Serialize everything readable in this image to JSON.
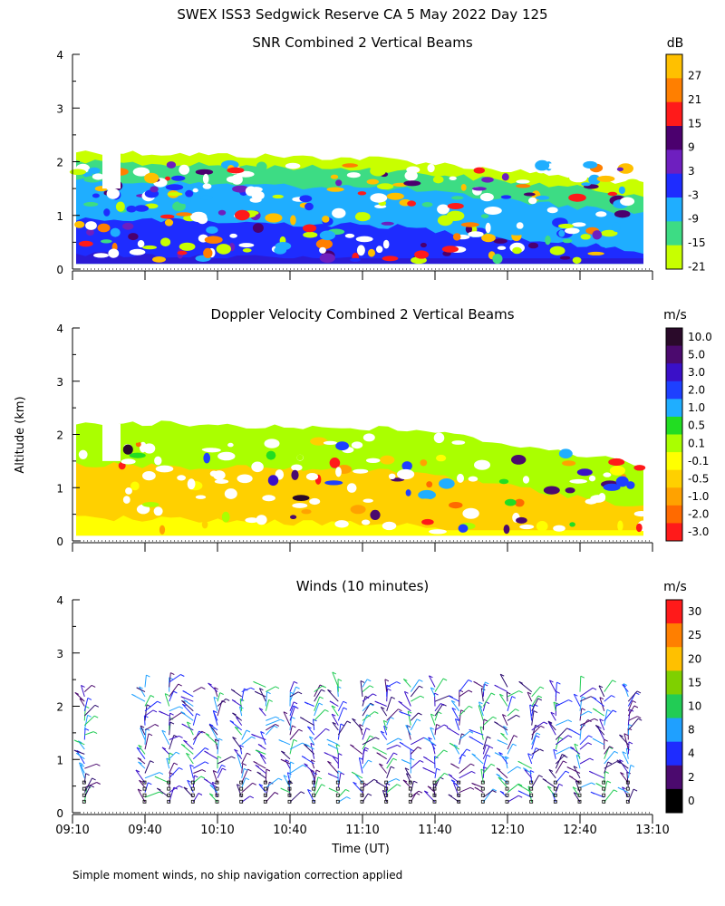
{
  "title": "SWEX ISS3 Sedgwick Reserve CA   5 May 2022 Day 125",
  "ylabel": "Altitude (km)",
  "xlabel": "Time (UT)",
  "footnote": "Simple moment winds, no ship navigation correction applied",
  "x_ticks": [
    "09:10",
    "09:40",
    "10:10",
    "10:40",
    "11:10",
    "11:40",
    "12:10",
    "12:40",
    "13:10"
  ],
  "chart_data": [
    {
      "type": "heatmap",
      "title": "SNR Combined 2 Vertical Beams",
      "unit": "dB",
      "ylim": [
        0,
        4
      ],
      "y_ticks": [
        "0",
        "1",
        "2",
        "3",
        "4"
      ],
      "colorbar_labels": [
        "27",
        "21",
        "15",
        "9",
        "3",
        "-3",
        "-9",
        "-15",
        "-21"
      ],
      "colorbar_colors": [
        "#ffc000",
        "#ff7f00",
        "#ff1a1a",
        "#4b006e",
        "#6e1fbf",
        "#1e2cff",
        "#1faeff",
        "#3ddc84",
        "#c8ff00"
      ],
      "layers": [
        {
          "min": 0.1,
          "max": 2.25,
          "color": "#c8ff00"
        },
        {
          "min": 0.1,
          "max": 2.05,
          "color": "#3ddc84"
        },
        {
          "min": 0.1,
          "max": 1.7,
          "color": "#1faeff"
        },
        {
          "min": 0.1,
          "max": 1.0,
          "color": "#1e2cff"
        },
        {
          "min": 0.1,
          "max": 0.35,
          "color": "#2b1ad6"
        }
      ]
    },
    {
      "type": "heatmap",
      "title": "Doppler Velocity Combined 2 Vertical Beams",
      "unit": "m/s",
      "ylim": [
        0,
        4
      ],
      "y_ticks": [
        "0",
        "1",
        "2",
        "3",
        "4"
      ],
      "colorbar_labels": [
        "10.0",
        "5.0",
        "3.0",
        "2.0",
        "1.0",
        "0.5",
        "0.1",
        "-0.1",
        "-0.5",
        "-1.0",
        "-2.0",
        "-3.0"
      ],
      "colorbar_colors": [
        "#2a0a2a",
        "#4b0a6e",
        "#3a10c8",
        "#1e40ff",
        "#1faeff",
        "#22dd22",
        "#aaff00",
        "#ffff00",
        "#ffd000",
        "#ffa200",
        "#ff6a00",
        "#ff1a1a"
      ],
      "layers": [
        {
          "min": 0.1,
          "max": 2.3,
          "color": "#aaff00"
        },
        {
          "min": 0.1,
          "max": 1.5,
          "color": "#ffd000"
        },
        {
          "min": 0.1,
          "max": 0.5,
          "color": "#ffff00"
        }
      ]
    },
    {
      "type": "scatter",
      "title": "Winds (10 minutes)",
      "unit": "m/s",
      "ylim": [
        0,
        4
      ],
      "y_ticks": [
        "0",
        "1",
        "2",
        "3",
        "4"
      ],
      "colorbar_labels": [
        "30",
        "25",
        "20",
        "15",
        "10",
        "8",
        "4",
        "2",
        "0"
      ],
      "colorbar_colors": [
        "#ff1a1a",
        "#ff7f00",
        "#ffc000",
        "#7fd000",
        "#22cc55",
        "#1fa0ff",
        "#1e2cff",
        "#4b0a6e",
        "#000000"
      ],
      "profile_times": [
        "09:15",
        "09:40",
        "09:50",
        "10:00",
        "10:10",
        "10:20",
        "10:30",
        "10:40",
        "10:50",
        "11:00",
        "11:10",
        "11:20",
        "11:30",
        "11:40",
        "11:50",
        "12:00",
        "12:10",
        "12:20",
        "12:30",
        "12:40",
        "12:50",
        "13:00"
      ],
      "profile_top_km": [
        2.3,
        2.4,
        2.5,
        2.3,
        2.3,
        2.3,
        2.4,
        2.3,
        2.3,
        2.4,
        2.4,
        2.4,
        2.4,
        2.4,
        2.3,
        2.4,
        2.4,
        2.3,
        2.3,
        2.3,
        2.3,
        2.3
      ]
    }
  ]
}
